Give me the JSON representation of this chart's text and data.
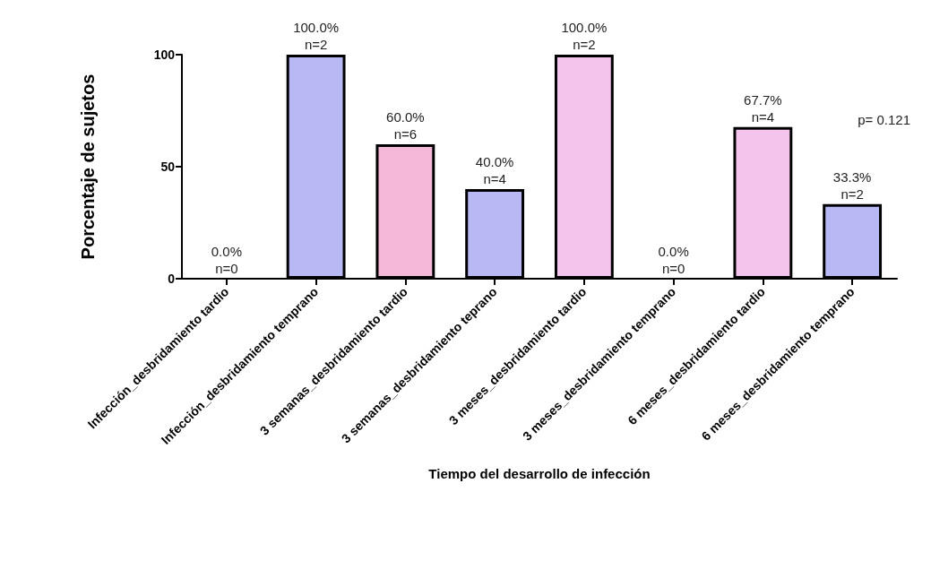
{
  "chart_data": {
    "type": "bar",
    "xlabel": "Tiempo del desarrollo de infección",
    "ylabel": "Porcentaje de sujetos",
    "categories": [
      "Infección_desbridamiento tardio",
      "Infección_desbridamiento temprano",
      "3 semanas_desbridamiento tardio",
      "3 semanas_desbridamiento teprano",
      "3 meses_desbridamiento tardio",
      "3 meses_desbridamiento temprano",
      "6 meses_desbridamiento tardio",
      "6 meses_desbridamiento temprano"
    ],
    "values": [
      0,
      100,
      60,
      40,
      100,
      0,
      67.7,
      33.3
    ],
    "colors": [
      "#f4c4ec",
      "#b8b8f4",
      "#f6b8d8",
      "#b8b8f4",
      "#f4c4ec",
      "#b8b8f4",
      "#f4c4ec",
      "#b8b8f4"
    ],
    "value_labels": [
      "0.0%\nn=0",
      "100.0%\nn=2",
      "60.0%\nn=6",
      "40.0%\nn=4",
      "100.0%\nn=2",
      "0.0%\nn=0",
      "67.7%\nn=4",
      "33.3%\nn=2"
    ],
    "ylim": [
      0,
      100
    ],
    "yticks": [
      0,
      50,
      100
    ],
    "grid": false,
    "annotations": [
      "p= 0.121"
    ]
  }
}
